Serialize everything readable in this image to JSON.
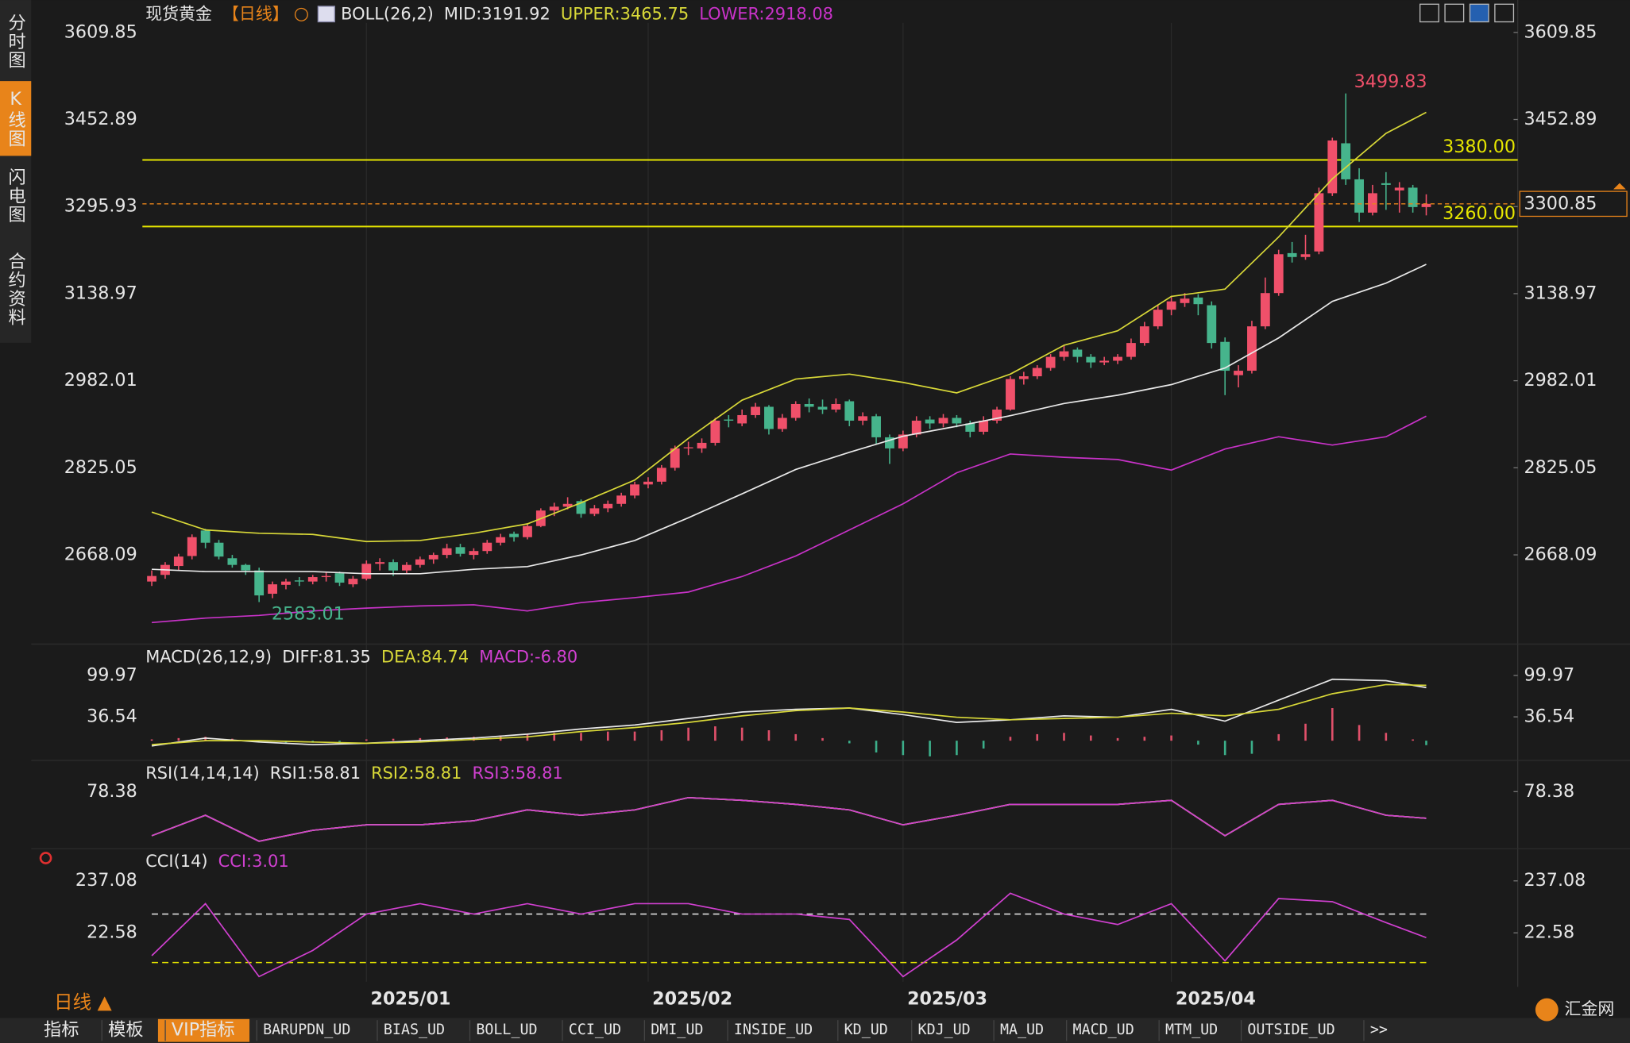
{
  "sidebar_tabs": [
    "分时图",
    "K线图",
    "闪电图",
    "合约资料"
  ],
  "period_selector": "日线 ▲",
  "toolbar": [
    "指标",
    "模板",
    "VIP指标",
    "BARUPDN_UD",
    "BIAS_UD",
    "BOLL_UD",
    "CCI_UD",
    "DMI_UD",
    "INSIDE_UD",
    "KD_UD",
    "KDJ_UD",
    "MA_UD",
    "MACD_UD",
    "MTM_UD",
    "OUTSIDE_UD",
    ">>"
  ],
  "logo": "汇金网",
  "chart_data": [
    {
      "type": "candlestick",
      "symbol": "现货黄金",
      "period": "【日线】",
      "indicator": "BOLL(26,2)",
      "up_color": "#f0506a",
      "down_color": "#46b48c",
      "xlim": [
        0,
        95
      ],
      "xticks": [
        {
          "value": 16,
          "label": "2025/01"
        },
        {
          "value": 37,
          "label": "2025/02"
        },
        {
          "value": 56,
          "label": "2025/03"
        },
        {
          "value": 76,
          "label": "2025/04"
        }
      ],
      "ylim": [
        2526,
        3627
      ],
      "yticks": [
        3609.85,
        3452.89,
        3295.93,
        3138.97,
        2982.01,
        2825.05,
        2668.09
      ],
      "candles": [
        [
          2620,
          2640,
          2612,
          2630
        ],
        [
          2632,
          2655,
          2625,
          2650
        ],
        [
          2648,
          2670,
          2640,
          2665
        ],
        [
          2666,
          2705,
          2660,
          2700
        ],
        [
          2712,
          2715,
          2680,
          2690
        ],
        [
          2690,
          2695,
          2660,
          2665
        ],
        [
          2662,
          2668,
          2645,
          2650
        ],
        [
          2650,
          2652,
          2632,
          2640
        ],
        [
          2640,
          2645,
          2583.01,
          2595
        ],
        [
          2598,
          2620,
          2590,
          2615
        ],
        [
          2614,
          2625,
          2606,
          2620
        ],
        [
          2622,
          2628,
          2612,
          2620
        ],
        [
          2620,
          2632,
          2615,
          2628
        ],
        [
          2628,
          2638,
          2620,
          2630
        ],
        [
          2635,
          2638,
          2612,
          2618
        ],
        [
          2615,
          2630,
          2610,
          2625
        ],
        [
          2625,
          2658,
          2622,
          2652
        ],
        [
          2652,
          2662,
          2640,
          2655
        ],
        [
          2655,
          2660,
          2630,
          2640
        ],
        [
          2640,
          2655,
          2635,
          2650
        ],
        [
          2650,
          2665,
          2645,
          2660
        ],
        [
          2660,
          2672,
          2652,
          2668
        ],
        [
          2668,
          2688,
          2662,
          2680
        ],
        [
          2682,
          2688,
          2665,
          2670
        ],
        [
          2668,
          2680,
          2660,
          2675
        ],
        [
          2675,
          2695,
          2670,
          2690
        ],
        [
          2690,
          2706,
          2685,
          2700
        ],
        [
          2706,
          2710,
          2692,
          2700
        ],
        [
          2700,
          2725,
          2696,
          2720
        ],
        [
          2720,
          2752,
          2718,
          2748
        ],
        [
          2748,
          2762,
          2738,
          2755
        ],
        [
          2755,
          2772,
          2750,
          2760
        ],
        [
          2765,
          2768,
          2735,
          2742
        ],
        [
          2742,
          2758,
          2738,
          2752
        ],
        [
          2752,
          2766,
          2745,
          2760
        ],
        [
          2760,
          2780,
          2755,
          2775
        ],
        [
          2775,
          2800,
          2770,
          2795
        ],
        [
          2795,
          2808,
          2788,
          2800
        ],
        [
          2800,
          2830,
          2795,
          2825
        ],
        [
          2825,
          2865,
          2820,
          2860
        ],
        [
          2862,
          2872,
          2848,
          2862
        ],
        [
          2860,
          2878,
          2852,
          2870
        ],
        [
          2870,
          2915,
          2865,
          2910
        ],
        [
          2912,
          2920,
          2898,
          2910
        ],
        [
          2905,
          2930,
          2900,
          2920
        ],
        [
          2920,
          2942,
          2915,
          2935
        ],
        [
          2935,
          2938,
          2885,
          2895
        ],
        [
          2895,
          2922,
          2890,
          2915
        ],
        [
          2915,
          2945,
          2910,
          2940
        ],
        [
          2940,
          2950,
          2925,
          2935
        ],
        [
          2935,
          2948,
          2922,
          2930
        ],
        [
          2930,
          2950,
          2925,
          2940
        ],
        [
          2945,
          2948,
          2900,
          2910
        ],
        [
          2910,
          2925,
          2902,
          2918
        ],
        [
          2918,
          2922,
          2868,
          2880
        ],
        [
          2880,
          2885,
          2832,
          2860
        ],
        [
          2860,
          2892,
          2855,
          2885
        ],
        [
          2885,
          2918,
          2880,
          2910
        ],
        [
          2912,
          2918,
          2895,
          2905
        ],
        [
          2905,
          2922,
          2898,
          2915
        ],
        [
          2915,
          2920,
          2898,
          2905
        ],
        [
          2905,
          2910,
          2880,
          2890
        ],
        [
          2890,
          2918,
          2885,
          2910
        ],
        [
          2910,
          2935,
          2905,
          2930
        ],
        [
          2930,
          2990,
          2928,
          2985
        ],
        [
          2985,
          2998,
          2975,
          2990
        ],
        [
          2990,
          3010,
          2985,
          3005
        ],
        [
          3005,
          3030,
          3000,
          3025
        ],
        [
          3025,
          3045,
          3018,
          3035
        ],
        [
          3038,
          3042,
          3015,
          3025
        ],
        [
          3025,
          3030,
          3005,
          3015
        ],
        [
          3015,
          3025,
          3010,
          3018
        ],
        [
          3018,
          3030,
          3012,
          3025
        ],
        [
          3025,
          3058,
          3020,
          3050
        ],
        [
          3050,
          3088,
          3045,
          3080
        ],
        [
          3080,
          3118,
          3075,
          3110
        ],
        [
          3110,
          3135,
          3100,
          3125
        ],
        [
          3122,
          3140,
          3115,
          3130
        ],
        [
          3132,
          3138,
          3100,
          3120
        ],
        [
          3118,
          3125,
          3040,
          3050
        ],
        [
          3052,
          3060,
          2956,
          3000
        ],
        [
          2992,
          3010,
          2970,
          3000
        ],
        [
          3000,
          3090,
          2995,
          3080
        ],
        [
          3080,
          3168,
          3075,
          3140
        ],
        [
          3140,
          3218,
          3135,
          3210
        ],
        [
          3212,
          3232,
          3195,
          3205
        ],
        [
          3205,
          3245,
          3200,
          3210
        ],
        [
          3215,
          3330,
          3210,
          3320
        ],
        [
          3320,
          3420,
          3315,
          3415
        ],
        [
          3410,
          3499.83,
          3335,
          3345
        ],
        [
          3345,
          3365,
          3268,
          3285
        ],
        [
          3285,
          3335,
          3280,
          3320
        ],
        [
          3338,
          3358,
          3290,
          3335
        ],
        [
          3325,
          3340,
          3285,
          3330
        ],
        [
          3330,
          3335,
          3285,
          3295
        ],
        [
          3295,
          3318,
          3280,
          3300.85
        ]
      ],
      "bands": {
        "x": [
          0,
          4,
          8,
          12,
          16,
          20,
          24,
          28,
          32,
          36,
          40,
          44,
          48,
          52,
          56,
          60,
          64,
          68,
          72,
          76,
          80,
          84,
          88,
          92,
          95
        ],
        "series": [
          {
            "label": "MID:3191.92",
            "color": "#e8e8e8",
            "values": [
              2642,
              2638,
              2638,
              2638,
              2634,
              2634,
              2642,
              2647,
              2668,
              2694,
              2735,
              2778,
              2822,
              2853,
              2882,
              2900,
              2919,
              2941,
              2956,
              2975,
              3005,
              3059,
              3125,
              3158,
              3191.92
            ]
          },
          {
            "label": "UPPER:3465.75",
            "color": "#d8d838",
            "values": [
              2745,
              2713,
              2707,
              2705,
              2692,
              2694,
              2707,
              2724,
              2762,
              2803,
              2878,
              2947,
              2985,
              2994,
              2979,
              2960,
              2994,
              3046,
              3072,
              3134,
              3147,
              3241,
              3346,
              3428,
              3465.75
            ]
          },
          {
            "label": "LOWER:2918.08",
            "color": "#c832c8",
            "values": [
              2546,
              2554,
              2559,
              2567,
              2572,
              2576,
              2578,
              2567,
              2582,
              2591,
              2601,
              2629,
              2666,
              2713,
              2760,
              2816,
              2850,
              2844,
              2840,
              2821,
              2859,
              2881,
              2866,
              2881,
              2918.08
            ]
          }
        ]
      },
      "levels": [
        {
          "value": 3380,
          "label": "3380.00",
          "color": "#e6e600"
        },
        {
          "value": 3260,
          "label": "3260.00",
          "color": "#e6e600"
        }
      ],
      "last_price_tag": true
    },
    {
      "type": "macd",
      "title": "MACD(26,12,9)",
      "xlim": [
        0,
        95
      ],
      "ylim": [
        -27,
        140
      ],
      "yticks": [
        99.97,
        36.54
      ],
      "x": [
        0,
        4,
        8,
        12,
        16,
        20,
        24,
        28,
        32,
        36,
        40,
        44,
        48,
        52,
        56,
        60,
        64,
        68,
        72,
        76,
        80,
        84,
        88,
        92,
        95
      ],
      "series": [
        {
          "label": "DIFF:81.35",
          "color": "#e8e8e8",
          "values": [
            -8,
            4,
            -2,
            -6,
            -4,
            0,
            4,
            10,
            18,
            24,
            34,
            44,
            48,
            50,
            40,
            28,
            32,
            38,
            36,
            48,
            30,
            62,
            94,
            92,
            81.35
          ]
        },
        {
          "label": "DEA:84.74",
          "color": "#d8d838",
          "values": [
            -6,
            0,
            0,
            -2,
            -4,
            -2,
            2,
            6,
            14,
            20,
            28,
            38,
            46,
            50,
            44,
            36,
            32,
            34,
            36,
            42,
            38,
            48,
            72,
            86,
            84.74
          ]
        }
      ],
      "histogram": {
        "label": "MACD:-6.80",
        "label_color": "#d040d0",
        "up_color": "#e0506a",
        "down_color": "#3caf8a",
        "x": [
          0,
          2,
          4,
          6,
          8,
          10,
          12,
          14,
          16,
          18,
          20,
          22,
          24,
          26,
          28,
          30,
          32,
          34,
          36,
          38,
          40,
          42,
          44,
          46,
          48,
          50,
          52,
          54,
          56,
          58,
          60,
          62,
          64,
          66,
          68,
          70,
          72,
          74,
          76,
          78,
          80,
          82,
          84,
          86,
          88,
          90,
          92,
          94,
          95
        ],
        "values": [
          2,
          4,
          6,
          3,
          -2,
          -3,
          -3,
          -2,
          2,
          3,
          4,
          5,
          6,
          8,
          10,
          12,
          12,
          14,
          14,
          16,
          20,
          22,
          20,
          16,
          10,
          4,
          -4,
          -18,
          -22,
          -24,
          -22,
          -12,
          6,
          10,
          12,
          8,
          4,
          6,
          8,
          -6,
          -22,
          -20,
          10,
          26,
          50,
          24,
          12,
          2,
          -6.8
        ]
      }
    },
    {
      "type": "line",
      "title": "RSI(14,14,14)",
      "xlim": [
        0,
        95
      ],
      "ylim": [
        38,
        99
      ],
      "yticks": [
        78.38
      ],
      "x": [
        0,
        4,
        8,
        12,
        16,
        20,
        24,
        28,
        32,
        36,
        40,
        44,
        48,
        52,
        56,
        60,
        64,
        68,
        72,
        76,
        80,
        84,
        88,
        92,
        95
      ],
      "series": [
        {
          "label": "RSI1:58.81",
          "color": "#e8e8e8",
          "values": [
            46,
            61,
            42,
            50,
            54,
            54,
            57,
            65,
            61,
            65,
            74,
            72,
            69,
            65,
            54,
            61,
            69,
            69,
            69,
            72,
            46,
            69,
            72,
            61,
            58.81
          ]
        },
        {
          "label": "RSI2:58.81",
          "color": "#d8d838",
          "values": [
            46,
            61,
            42,
            50,
            54,
            54,
            57,
            65,
            61,
            65,
            74,
            72,
            69,
            65,
            54,
            61,
            69,
            69,
            69,
            72,
            46,
            69,
            72,
            61,
            58.81
          ]
        },
        {
          "label": "RSI3:58.81",
          "color": "#d040d0",
          "values": [
            46,
            61,
            42,
            50,
            54,
            54,
            57,
            65,
            61,
            65,
            74,
            72,
            69,
            65,
            54,
            61,
            69,
            69,
            69,
            72,
            46,
            69,
            72,
            61,
            58.81
          ]
        }
      ]
    },
    {
      "type": "line",
      "title": "CCI(14)",
      "xlim": [
        0,
        95
      ],
      "ylim": [
        -179,
        357
      ],
      "yticks": [
        237.08,
        22.58
      ],
      "levels": [
        {
          "value": 100,
          "color": "#e0e0e0"
        },
        {
          "value": -100,
          "color": "#e6e600"
        }
      ],
      "x": [
        0,
        4,
        8,
        12,
        16,
        20,
        24,
        28,
        32,
        36,
        40,
        44,
        48,
        52,
        56,
        60,
        64,
        68,
        72,
        76,
        80,
        84,
        88,
        92,
        95
      ],
      "series": [
        {
          "label": "CCI:3.01",
          "color": "#d040d0",
          "values": [
            -72,
            143,
            -158,
            -50,
            100,
            143,
            100,
            143,
            100,
            143,
            143,
            100,
            100,
            78,
            -158,
            -7,
            186,
            100,
            57,
            143,
            -93,
            164,
            151,
            65,
            3.01
          ]
        }
      ]
    }
  ]
}
